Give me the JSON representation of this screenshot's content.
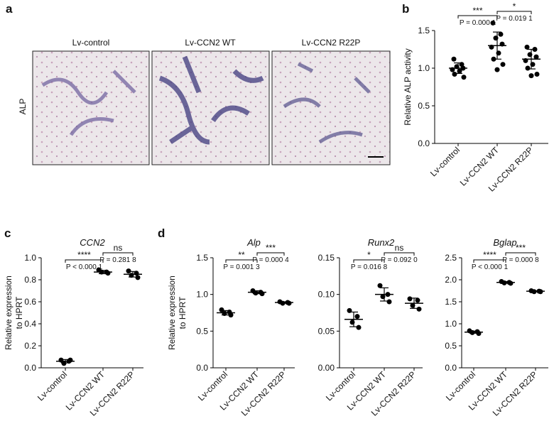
{
  "panels": [
    "a",
    "b",
    "c",
    "d"
  ],
  "images": {
    "ylabel": "ALP",
    "labels": [
      "Lv-control",
      "Lv-CCN2 WT",
      "Lv-CCN2 R22P"
    ]
  },
  "chart_data": [
    {
      "type": "dot",
      "ylabel": [
        "Relative ALP activity"
      ],
      "categories": [
        "Lv-control",
        "Lv-CCN2 WT",
        "Lv-CCN2 R22P"
      ],
      "values": [
        [
          1.12,
          1.05,
          1.02,
          1.0,
          0.98,
          0.96,
          0.92,
          0.88
        ],
        [
          1.6,
          1.45,
          1.4,
          1.32,
          1.28,
          1.2,
          1.12,
          1.05,
          0.98
        ],
        [
          1.28,
          1.25,
          1.18,
          1.15,
          1.1,
          1.05,
          1.0,
          0.92,
          0.9
        ]
      ],
      "mean": [
        1.0,
        1.3,
        1.12
      ],
      "sd": [
        0.07,
        0.18,
        0.13
      ],
      "ylim": [
        0,
        1.5
      ],
      "yticks": [
        {
          "value": 0,
          "label": "0.0"
        },
        0.5,
        {
          "value": 1,
          "label": "1.0"
        },
        1.5
      ],
      "annotations": [
        {
          "stars": "***",
          "p": "P = 0.000 1"
        },
        {
          "stars": "*",
          "p": "P = 0.019 1"
        }
      ]
    },
    {
      "type": "dot",
      "title": "CCN2",
      "ylabel": [
        "Relative expression",
        "to HPRT"
      ],
      "categories": [
        "Lv-control",
        "Lv-CCN2 WT",
        "Lv-CCN2 R22P"
      ],
      "values": [
        [
          0.07,
          0.06,
          0.04,
          0.07
        ],
        [
          0.89,
          0.87,
          0.87,
          0.86
        ],
        [
          0.88,
          0.86,
          0.84,
          0.82
        ]
      ],
      "mean": [
        0.06,
        0.87,
        0.85
      ],
      "sd": [
        0.015,
        0.015,
        0.025
      ],
      "ylim": [
        0,
        1
      ],
      "yticks": [
        {
          "value": 0,
          "label": "0.0"
        },
        0.2,
        0.4,
        0.6,
        0.8,
        {
          "value": 1,
          "label": "1.0"
        }
      ],
      "annotations": [
        {
          "stars": "****",
          "p": "P < 0.000 1"
        },
        {
          "stars": "ns",
          "p": "P = 0.281 8"
        }
      ]
    },
    {
      "type": "dot",
      "title": "Alp",
      "ylabel": [
        "Relative expression",
        "to HPRT"
      ],
      "categories": [
        "Lv-control",
        "Lv-CCN2 WT",
        "Lv-CCN2 R22P"
      ],
      "values": [
        [
          0.79,
          0.76,
          0.74,
          0.72
        ],
        [
          1.05,
          1.03,
          1.02,
          1.01
        ],
        [
          0.9,
          0.89,
          0.88,
          0.88
        ]
      ],
      "mean": [
        0.75,
        1.03,
        0.89
      ],
      "sd": [
        0.03,
        0.02,
        0.01
      ],
      "ylim": [
        0,
        1.5
      ],
      "yticks": [
        {
          "value": 0,
          "label": "0.0"
        },
        0.5,
        {
          "value": 1,
          "label": "1.0"
        },
        1.5
      ],
      "annotations": [
        {
          "stars": "**",
          "p": "P = 0.001 3"
        },
        {
          "stars": "***",
          "p": "P = 0.000 4"
        }
      ]
    },
    {
      "type": "dot",
      "title": "Runx2",
      "categories": [
        "Lv-control",
        "Lv-CCN2 WT",
        "Lv-CCN2 R22P"
      ],
      "values": [
        [
          0.078,
          0.07,
          0.062,
          0.055
        ],
        [
          0.112,
          0.1,
          0.097,
          0.09
        ],
        [
          0.094,
          0.092,
          0.085,
          0.08
        ]
      ],
      "mean": [
        0.066,
        0.1,
        0.088
      ],
      "sd": [
        0.01,
        0.009,
        0.007
      ],
      "ylim": [
        0,
        0.15
      ],
      "yticks": [
        {
          "value": 0,
          "label": "0.00"
        },
        0.05,
        {
          "value": 0.1,
          "label": "0.10"
        },
        0.15
      ],
      "annotations": [
        {
          "stars": "*",
          "p": "P = 0.016 8"
        },
        {
          "stars": "ns",
          "p": "P = 0.092 0"
        }
      ]
    },
    {
      "type": "dot",
      "title": "Bglap",
      "categories": [
        "Lv-control",
        "Lv-CCN2 WT",
        "Lv-CCN2 R22P"
      ],
      "values": [
        [
          0.84,
          0.82,
          0.8,
          0.78
        ],
        [
          1.96,
          1.94,
          1.93,
          1.92
        ],
        [
          1.75,
          1.74,
          1.73,
          1.73
        ]
      ],
      "mean": [
        0.81,
        1.94,
        1.74
      ],
      "sd": [
        0.025,
        0.02,
        0.01
      ],
      "ylim": [
        0,
        2.5
      ],
      "yticks": [
        {
          "value": 0,
          "label": "0.0"
        },
        0.5,
        {
          "value": 1,
          "label": "1.0"
        },
        1.5,
        {
          "value": 2,
          "label": "2.0"
        },
        2.5
      ],
      "annotations": [
        {
          "stars": "****",
          "p": "P < 0.000 1"
        },
        {
          "stars": "***",
          "p": "P = 0.000 8"
        }
      ]
    }
  ]
}
